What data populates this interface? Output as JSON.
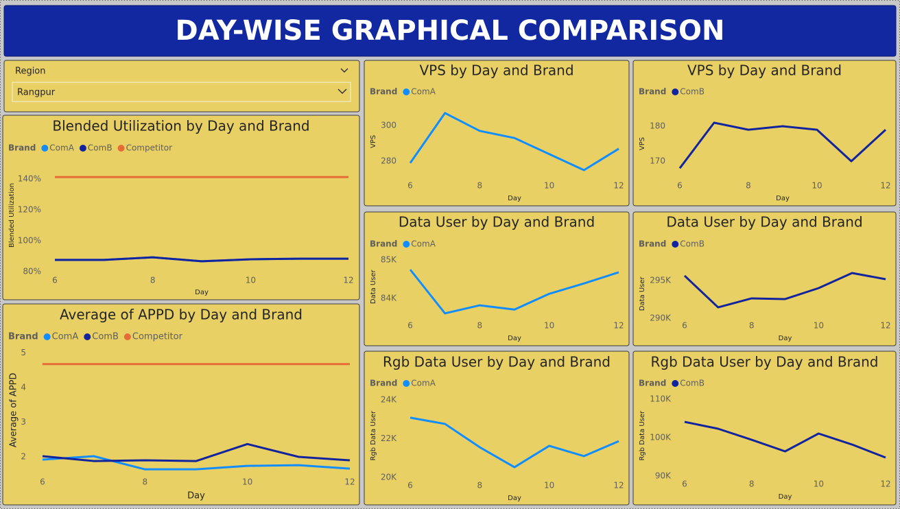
{
  "header": {
    "title": "DAY-WISE GRAPHICAL COMPARISON"
  },
  "slicer": {
    "label": "Region",
    "selected": "Rangpur"
  },
  "chart_data": [
    {
      "type": "line",
      "title": "Blended Utilization by Day and Brand",
      "legend_title": "Brand",
      "y_label": "Blended Utilization",
      "x_label": "Day",
      "x": [
        6,
        7,
        8,
        9,
        10,
        11,
        12
      ],
      "xlim": [
        6,
        12
      ],
      "xticks": [
        6,
        8,
        10,
        12
      ],
      "ylim": [
        78,
        155
      ],
      "yticks": [
        {
          "value": 80,
          "label": "80%"
        },
        {
          "value": 100,
          "label": "100%"
        },
        {
          "value": 120,
          "label": "120%"
        },
        {
          "value": 140,
          "label": "140%"
        }
      ],
      "series": [
        {
          "name": "ComA",
          "color": "#118dff",
          "values": [
            87.6,
            87.6,
            89.3,
            86.7,
            88,
            88.4,
            88.4
          ]
        },
        {
          "name": "ComB",
          "color": "#12239e",
          "values": [
            87.6,
            87.6,
            89.3,
            86.7,
            88,
            88.4,
            88.4
          ]
        },
        {
          "name": "Competitor",
          "color": "#e66c37",
          "values": [
            141.3,
            141.3,
            141.3,
            141.3,
            141.3,
            141.3,
            141.3
          ]
        }
      ]
    },
    {
      "type": "line",
      "title": "Average of APPD by Day and Brand",
      "legend_title": "Brand",
      "y_label": "Average of APPD",
      "x_label": "Day",
      "x": [
        6,
        7,
        8,
        9,
        10,
        11,
        12
      ],
      "xlim": [
        6,
        12
      ],
      "xticks": [
        6,
        8,
        10,
        12
      ],
      "ylim": [
        1.4,
        5.3
      ],
      "yticks": [
        2,
        3,
        4,
        5
      ],
      "series": [
        {
          "name": "ComA",
          "color": "#118dff",
          "values": [
            1.92,
            2.02,
            1.64,
            1.64,
            1.74,
            1.76,
            1.66
          ]
        },
        {
          "name": "ComB",
          "color": "#12239e",
          "values": [
            2.02,
            1.88,
            1.9,
            1.88,
            2.37,
            2.0,
            1.9
          ]
        },
        {
          "name": "Competitor",
          "color": "#e66c37",
          "values": [
            4.68,
            4.68,
            4.68,
            4.68,
            4.68,
            4.68,
            4.68
          ]
        }
      ]
    },
    {
      "type": "line",
      "title": "VPS by Day and Brand",
      "legend_title": "Brand",
      "y_label": "VPS",
      "x_label": "Day",
      "x": [
        6,
        7,
        8,
        9,
        10,
        11,
        12
      ],
      "xlim": [
        6,
        12
      ],
      "xticks": [
        6,
        8,
        10,
        12
      ],
      "ylim": [
        272,
        310
      ],
      "yticks": [
        280,
        300
      ],
      "series": [
        {
          "name": "ComA",
          "color": "#118dff",
          "values": [
            279,
            307,
            297,
            293,
            284,
            275,
            287
          ]
        }
      ]
    },
    {
      "type": "line",
      "title": "VPS by Day and Brand",
      "legend_title": "Brand",
      "y_label": "VPS",
      "x_label": "Day",
      "x": [
        6,
        7,
        8,
        9,
        10,
        11,
        12
      ],
      "xlim": [
        6,
        12
      ],
      "xticks": [
        6,
        8,
        10,
        12
      ],
      "ylim": [
        166,
        184
      ],
      "yticks": [
        170,
        180
      ],
      "series": [
        {
          "name": "ComB",
          "color": "#12239e",
          "values": [
            168,
            181,
            179,
            180,
            179,
            170,
            179
          ]
        }
      ]
    },
    {
      "type": "line",
      "title": "Data User by Day and Brand",
      "legend_title": "Brand",
      "y_label": "Data User",
      "x_label": "Day",
      "x": [
        6,
        7,
        8,
        9,
        10,
        11,
        12
      ],
      "xlim": [
        6,
        12
      ],
      "xticks": [
        6,
        8,
        10,
        12
      ],
      "ylim": [
        83400,
        85200
      ],
      "yticks": [
        {
          "value": 84000,
          "label": "84K"
        },
        {
          "value": 85000,
          "label": "85K"
        }
      ],
      "series": [
        {
          "name": "ComA",
          "color": "#118dff",
          "values": [
            84750,
            83610,
            83820,
            83710,
            84120,
            84390,
            84680
          ]
        }
      ]
    },
    {
      "type": "line",
      "title": "Data User by Day and Brand",
      "legend_title": "Brand",
      "y_label": "Data User",
      "x_label": "Day",
      "x": [
        6,
        7,
        8,
        9,
        10,
        11,
        12
      ],
      "xlim": [
        6,
        12
      ],
      "xticks": [
        6,
        8,
        10,
        12
      ],
      "ylim": [
        289000,
        297500
      ],
      "yticks": [
        {
          "value": 290000,
          "label": "290K"
        },
        {
          "value": 295000,
          "label": "295K"
        }
      ],
      "series": [
        {
          "name": "ComB",
          "color": "#12239e",
          "values": [
            295640,
            291450,
            292640,
            292550,
            294000,
            296000,
            295180
          ]
        }
      ]
    },
    {
      "type": "line",
      "title": "Rgb Data User by Day and Brand",
      "legend_title": "Brand",
      "y_label": "Rgb Data User",
      "x_label": "Day",
      "x": [
        6,
        7,
        8,
        9,
        10,
        11,
        12
      ],
      "xlim": [
        6,
        12
      ],
      "xticks": [
        6,
        8,
        10,
        12
      ],
      "ylim": [
        19800,
        24500
      ],
      "yticks": [
        {
          "value": 20000,
          "label": "20K"
        },
        {
          "value": 22000,
          "label": "22K"
        },
        {
          "value": 24000,
          "label": "24K"
        }
      ],
      "series": [
        {
          "name": "ComA",
          "color": "#118dff",
          "values": [
            23080,
            22760,
            21560,
            20530,
            21630,
            21100,
            21870
          ]
        }
      ]
    },
    {
      "type": "line",
      "title": "Rgb Data User by Day and Brand",
      "legend_title": "Brand",
      "y_label": "Rgb Data User",
      "x_label": "Day",
      "x": [
        6,
        7,
        8,
        9,
        10,
        11,
        12
      ],
      "xlim": [
        6,
        12
      ],
      "xticks": [
        6,
        8,
        10,
        12
      ],
      "ylim": [
        89000,
        112000
      ],
      "yticks": [
        {
          "value": 90000,
          "label": "90K"
        },
        {
          "value": 100000,
          "label": "100K"
        },
        {
          "value": 110000,
          "label": "110K"
        }
      ],
      "series": [
        {
          "name": "ComB",
          "color": "#12239e",
          "values": [
            104110,
            102320,
            99460,
            96430,
            101070,
            98210,
            94820
          ]
        }
      ]
    }
  ]
}
